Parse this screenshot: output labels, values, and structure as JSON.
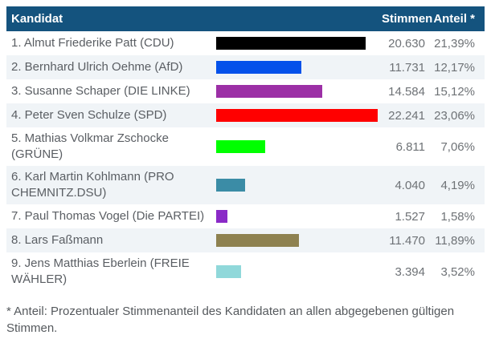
{
  "table": {
    "header": {
      "kandidat": "Kandidat",
      "stimmen": "Stimmen",
      "anteil": "Anteil *"
    },
    "rows": [
      {
        "name": "1. Almut Friederike Patt (CDU)",
        "stimmen": "20.630",
        "anteil": "21,39%",
        "pct": 21.39,
        "bar_color": "#000000"
      },
      {
        "name": "2. Bernhard Ulrich Oehme (AfD)",
        "stimmen": "11.731",
        "anteil": "12,17%",
        "pct": 12.17,
        "bar_color": "#0451ea"
      },
      {
        "name": "3. Susanne Schaper (DIE LINKE)",
        "stimmen": "14.584",
        "anteil": "15,12%",
        "pct": 15.12,
        "bar_color": "#9c2fa6"
      },
      {
        "name": "4. Peter Sven Schulze (SPD)",
        "stimmen": "22.241",
        "anteil": "23,06%",
        "pct": 23.06,
        "bar_color": "#ff0000"
      },
      {
        "name": "5. Mathias Volkmar Zschocke (GRÜNE)",
        "stimmen": "6.811",
        "anteil": "7,06%",
        "pct": 7.06,
        "bar_color": "#00ff00"
      },
      {
        "name": "6. Karl Martin Kohlmann (PRO CHEMNITZ.DSU)",
        "stimmen": "4.040",
        "anteil": "4,19%",
        "pct": 4.19,
        "bar_color": "#3b8ca6"
      },
      {
        "name": "7. Paul Thomas Vogel (Die PARTEI)",
        "stimmen": "1.527",
        "anteil": "1,58%",
        "pct": 1.58,
        "bar_color": "#8a2ac7"
      },
      {
        "name": "8. Lars Faßmann",
        "stimmen": "11.470",
        "anteil": "11,89%",
        "pct": 11.89,
        "bar_color": "#8e8150"
      },
      {
        "name": "9. Jens Matthias Eberlein (FREIE WÄHLER)",
        "stimmen": "3.394",
        "anteil": "3,52%",
        "pct": 3.52,
        "bar_color": "#90d8da"
      }
    ]
  },
  "footnote": "* Anteil: Prozentualer Stimmenanteil des Kandidaten an allen abgegebenen gültigen Stimmen.",
  "colors": {
    "header_bg": "#14537e",
    "header_text": "#ffffff",
    "row_alt_bg": "#f0f4f7",
    "name_text": "#5a5e63",
    "number_text": "#6e7276",
    "footnote_text": "#55595d"
  },
  "chart_data": {
    "type": "bar",
    "orientation": "horizontal",
    "title": "Kandidat / Stimmen / Anteil *",
    "categories": [
      "1. Almut Friederike Patt (CDU)",
      "2. Bernhard Ulrich Oehme (AfD)",
      "3. Susanne Schaper (DIE LINKE)",
      "4. Peter Sven Schulze (SPD)",
      "5. Mathias Volkmar Zschocke (GRÜNE)",
      "6. Karl Martin Kohlmann (PRO CHEMNITZ.DSU)",
      "7. Paul Thomas Vogel (Die PARTEI)",
      "8. Lars Faßmann",
      "9. Jens Matthias Eberlein (FREIE WÄHLER)"
    ],
    "series": [
      {
        "name": "Stimmen",
        "values": [
          20630,
          11731,
          14584,
          22241,
          6811,
          4040,
          1527,
          11470,
          3394
        ]
      },
      {
        "name": "Anteil %",
        "values": [
          21.39,
          12.17,
          15.12,
          23.06,
          7.06,
          4.19,
          1.58,
          11.89,
          3.52
        ]
      }
    ],
    "bar_colors": [
      "#000000",
      "#0451ea",
      "#9c2fa6",
      "#ff0000",
      "#00ff00",
      "#3b8ca6",
      "#8a2ac7",
      "#8e8150",
      "#90d8da"
    ],
    "xlabel": "",
    "ylabel": "",
    "grid": false,
    "legend": false,
    "footnote": "* Anteil: Prozentualer Stimmenanteil des Kandidaten an allen abgegebenen gültigen Stimmen."
  }
}
